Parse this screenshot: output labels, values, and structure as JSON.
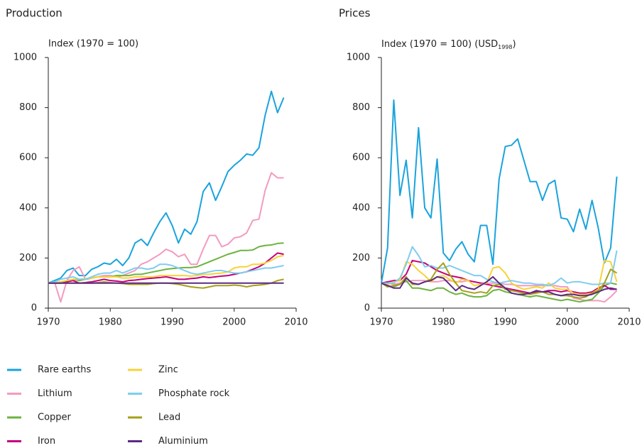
{
  "chart_data": [
    {
      "type": "line",
      "title": "Production",
      "y_label": "Index (1970 = 100)",
      "x": [
        1970,
        1971,
        1972,
        1973,
        1974,
        1975,
        1976,
        1977,
        1978,
        1979,
        1980,
        1981,
        1982,
        1983,
        1984,
        1985,
        1986,
        1987,
        1988,
        1989,
        1990,
        1991,
        1992,
        1993,
        1994,
        1995,
        1996,
        1997,
        1998,
        1999,
        2000,
        2001,
        2002,
        2003,
        2004,
        2005,
        2006,
        2007,
        2008
      ],
      "xlim": [
        1970,
        2010
      ],
      "xticks": [
        1970,
        1980,
        1990,
        2000,
        2010
      ],
      "ylim": [
        0,
        1000
      ],
      "yticks": [
        0,
        200,
        400,
        600,
        800,
        1000
      ],
      "series": [
        {
          "name": "Rare earths",
          "color": "#1aa3dd",
          "values": [
            100,
            110,
            120,
            150,
            160,
            130,
            130,
            155,
            165,
            180,
            175,
            195,
            170,
            200,
            260,
            275,
            250,
            300,
            345,
            380,
            330,
            260,
            315,
            295,
            345,
            465,
            500,
            430,
            485,
            545,
            570,
            590,
            615,
            610,
            640,
            770,
            865,
            780,
            840
          ]
        },
        {
          "name": "Lithium",
          "color": "#f29bc1",
          "values": [
            100,
            105,
            25,
            110,
            150,
            165,
            115,
            120,
            125,
            130,
            130,
            125,
            130,
            140,
            150,
            175,
            185,
            200,
            215,
            235,
            225,
            205,
            215,
            175,
            175,
            235,
            290,
            290,
            245,
            255,
            280,
            285,
            300,
            350,
            355,
            470,
            540,
            520,
            520
          ]
        },
        {
          "name": "Copper",
          "color": "#6cb33f",
          "values": [
            100,
            100,
            105,
            110,
            115,
            110,
            115,
            120,
            125,
            125,
            125,
            130,
            130,
            130,
            135,
            135,
            140,
            145,
            150,
            155,
            158,
            160,
            162,
            162,
            165,
            175,
            185,
            195,
            205,
            215,
            222,
            230,
            230,
            232,
            245,
            250,
            252,
            258,
            260
          ]
        },
        {
          "name": "Iron",
          "color": "#c4007a",
          "values": [
            100,
            100,
            100,
            105,
            110,
            100,
            102,
            105,
            110,
            115,
            110,
            108,
            105,
            110,
            112,
            115,
            118,
            120,
            122,
            125,
            120,
            115,
            115,
            118,
            120,
            125,
            122,
            125,
            128,
            130,
            135,
            140,
            145,
            155,
            165,
            180,
            200,
            220,
            215
          ]
        },
        {
          "name": "Zinc",
          "color": "#f8d23a",
          "values": [
            100,
            100,
            105,
            110,
            115,
            115,
            118,
            120,
            125,
            125,
            125,
            125,
            120,
            120,
            125,
            125,
            125,
            125,
            130,
            130,
            130,
            130,
            130,
            128,
            130,
            135,
            135,
            138,
            140,
            145,
            160,
            165,
            165,
            175,
            175,
            180,
            190,
            205,
            210
          ]
        },
        {
          "name": "Phosphate rock",
          "color": "#7fcdef",
          "values": [
            100,
            105,
            115,
            120,
            125,
            115,
            115,
            125,
            135,
            140,
            140,
            150,
            140,
            150,
            160,
            160,
            155,
            160,
            175,
            175,
            170,
            160,
            150,
            140,
            135,
            140,
            145,
            150,
            150,
            145,
            140,
            140,
            145,
            150,
            155,
            160,
            160,
            165,
            170
          ]
        },
        {
          "name": "Lead",
          "color": "#a6a01a",
          "values": [
            100,
            100,
            100,
            100,
            100,
            100,
            100,
            100,
            102,
            105,
            102,
            100,
            98,
            95,
            95,
            95,
            95,
            98,
            100,
            100,
            98,
            95,
            90,
            85,
            82,
            80,
            85,
            90,
            90,
            90,
            92,
            90,
            85,
            90,
            92,
            95,
            100,
            110,
            115
          ]
        },
        {
          "name": "Aluminium",
          "color": "#5b2a86",
          "values": [
            100,
            100,
            100,
            100,
            100,
            100,
            100,
            100,
            100,
            100,
            100,
            100,
            100,
            100,
            100,
            100,
            100,
            100,
            100,
            100,
            100,
            100,
            100,
            100,
            100,
            100,
            100,
            100,
            100,
            100,
            100,
            100,
            100,
            100,
            100,
            100,
            100,
            100,
            100
          ]
        }
      ]
    },
    {
      "type": "line",
      "title": "Prices",
      "y_label": "Index (1970 = 100) (USD",
      "y_label_sub": "1998",
      "y_label_end": ")",
      "x": [
        1970,
        1971,
        1972,
        1973,
        1974,
        1975,
        1976,
        1977,
        1978,
        1979,
        1980,
        1981,
        1982,
        1983,
        1984,
        1985,
        1986,
        1987,
        1988,
        1989,
        1990,
        1991,
        1992,
        1993,
        1994,
        1995,
        1996,
        1997,
        1998,
        1999,
        2000,
        2001,
        2002,
        2003,
        2004,
        2005,
        2006,
        2007,
        2008
      ],
      "xlim": [
        1970,
        2010
      ],
      "xticks": [
        1970,
        1980,
        1990,
        2000,
        2010
      ],
      "ylim": [
        0,
        1000
      ],
      "yticks": [
        0,
        200,
        400,
        600,
        800,
        1000
      ],
      "series": [
        {
          "color": "#1aa3dd",
          "values": [
            100,
            240,
            830,
            450,
            590,
            360,
            720,
            400,
            360,
            595,
            220,
            190,
            235,
            265,
            215,
            185,
            330,
            330,
            175,
            515,
            645,
            650,
            675,
            590,
            505,
            505,
            430,
            495,
            510,
            360,
            355,
            305,
            395,
            315,
            430,
            320,
            180,
            240,
            525
          ]
        },
        {
          "color": "#f29bc1",
          "values": [
            100,
            100,
            95,
            100,
            105,
            110,
            110,
            110,
            105,
            105,
            110,
            110,
            105,
            105,
            110,
            105,
            100,
            100,
            100,
            100,
            95,
            95,
            90,
            90,
            90,
            90,
            90,
            90,
            90,
            85,
            85,
            40,
            35,
            30,
            30,
            30,
            25,
            45,
            70
          ]
        },
        {
          "color": "#6cb33f",
          "values": [
            100,
            90,
            85,
            95,
            110,
            80,
            80,
            75,
            70,
            80,
            80,
            65,
            55,
            60,
            50,
            45,
            45,
            50,
            70,
            75,
            65,
            60,
            55,
            50,
            45,
            50,
            45,
            40,
            35,
            30,
            35,
            30,
            25,
            30,
            35,
            60,
            90,
            100,
            95
          ]
        },
        {
          "color": "#c4007a",
          "values": [
            100,
            105,
            110,
            110,
            135,
            190,
            185,
            180,
            165,
            150,
            140,
            130,
            125,
            120,
            110,
            105,
            100,
            95,
            90,
            85,
            80,
            75,
            70,
            65,
            60,
            65,
            65,
            70,
            70,
            65,
            70,
            65,
            60,
            60,
            65,
            80,
            90,
            75,
            75
          ]
        },
        {
          "color": "#f8d23a",
          "values": [
            100,
            95,
            105,
            110,
            185,
            175,
            150,
            130,
            105,
            125,
            130,
            115,
            100,
            115,
            110,
            90,
            95,
            100,
            160,
            165,
            140,
            100,
            85,
            75,
            80,
            85,
            80,
            100,
            80,
            75,
            75,
            60,
            55,
            55,
            60,
            75,
            190,
            185,
            105
          ]
        },
        {
          "color": "#7fcdef",
          "values": [
            100,
            100,
            100,
            120,
            175,
            245,
            210,
            165,
            170,
            160,
            160,
            170,
            160,
            150,
            140,
            130,
            130,
            115,
            105,
            100,
            105,
            110,
            105,
            100,
            100,
            95,
            95,
            90,
            100,
            120,
            100,
            105,
            105,
            100,
            95,
            95,
            100,
            100,
            230
          ]
        },
        {
          "color": "#a6a01a",
          "values": [
            100,
            85,
            90,
            95,
            125,
            95,
            95,
            105,
            115,
            155,
            180,
            135,
            100,
            70,
            65,
            60,
            65,
            60,
            90,
            95,
            75,
            70,
            65,
            60,
            55,
            60,
            65,
            55,
            55,
            50,
            50,
            45,
            40,
            45,
            60,
            70,
            100,
            155,
            140
          ]
        },
        {
          "color": "#5b2a86",
          "values": [
            100,
            90,
            80,
            80,
            120,
            100,
            95,
            105,
            110,
            125,
            120,
            95,
            70,
            90,
            80,
            75,
            90,
            105,
            125,
            100,
            80,
            60,
            55,
            55,
            60,
            70,
            65,
            65,
            55,
            50,
            55,
            55,
            50,
            50,
            55,
            65,
            75,
            80,
            75
          ]
        }
      ]
    }
  ]
}
